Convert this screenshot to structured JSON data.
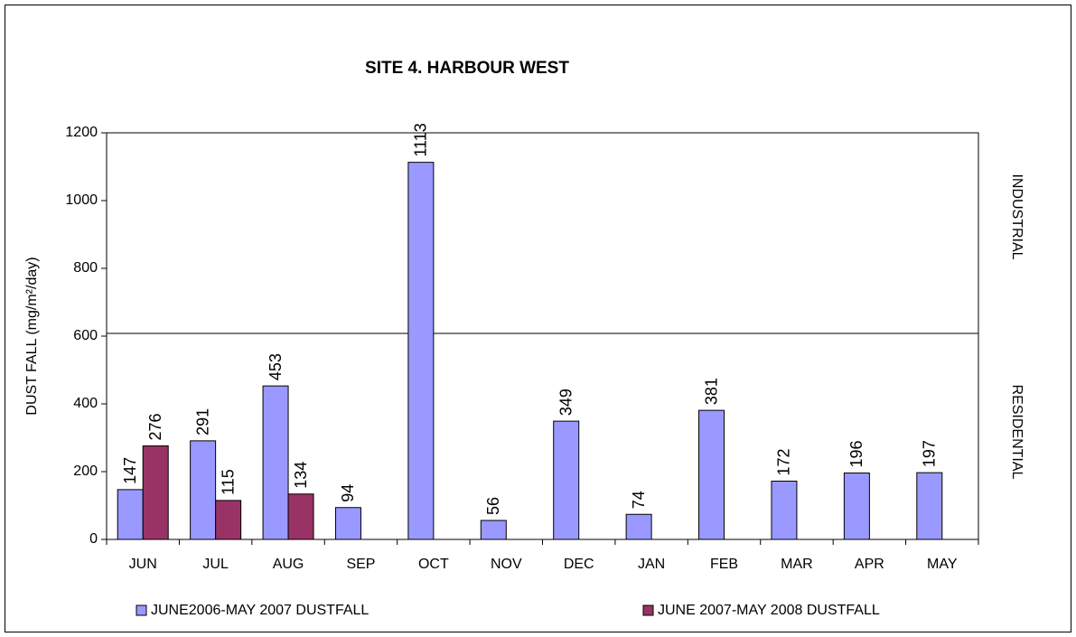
{
  "chart_data": {
    "type": "bar",
    "title": "SITE 4. HARBOUR WEST",
    "y_label": "DUST FALL  (mg/m²/day)",
    "categories": [
      "JUN",
      "JUL",
      "AUG",
      "SEP",
      "OCT",
      "NOV",
      "DEC",
      "JAN",
      "FEB",
      "MAR",
      "APR",
      "MAY"
    ],
    "series": [
      {
        "name": "JUNE2006-MAY 2007 DUSTFALL",
        "color": "#9999ff",
        "values": [
          147,
          291,
          453,
          94,
          1113,
          56,
          349,
          74,
          381,
          172,
          196,
          197
        ]
      },
      {
        "name": "JUNE 2007-MAY 2008 DUSTFALL",
        "color": "#993366",
        "values": [
          276,
          115,
          134,
          null,
          null,
          null,
          null,
          null,
          null,
          null,
          null,
          null
        ]
      }
    ],
    "ylim": [
      0,
      1200
    ],
    "yticks": [
      0,
      200,
      400,
      600,
      800,
      1000,
      1200
    ],
    "threshold": 608,
    "zone_labels": [
      "INDUSTRIAL",
      "RESIDENTIAL"
    ],
    "legend": "bottom"
  }
}
